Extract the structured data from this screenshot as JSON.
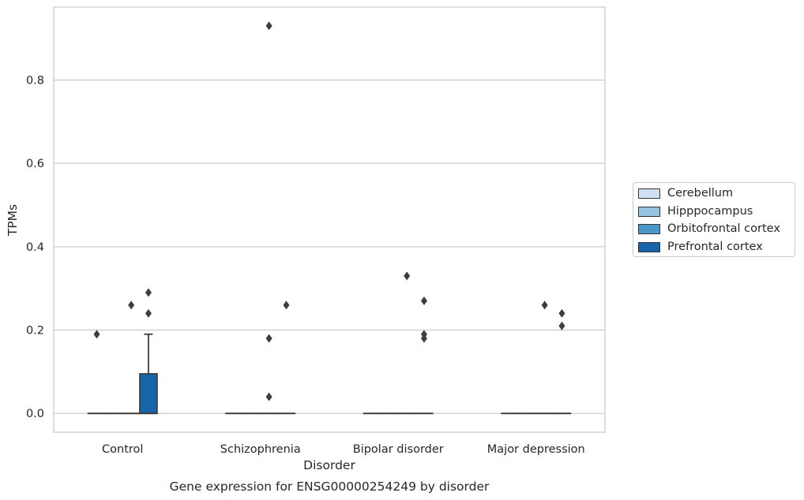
{
  "chart_data": {
    "type": "box",
    "title": "Gene expression for ENSG00000254249 by disorder",
    "xlabel": "Disorder",
    "ylabel": "TPMs",
    "ylim": [
      -0.045,
      0.975
    ],
    "yticks": [
      0.0,
      0.2,
      0.4,
      0.6,
      0.8
    ],
    "ytick_labels": [
      "0.0",
      "0.2",
      "0.4",
      "0.6",
      "0.8"
    ],
    "grid": "horizontal",
    "legend_position": "right",
    "categories": [
      "Control",
      "Schizophrenia",
      "Bipolar disorder",
      "Major depression"
    ],
    "series": [
      {
        "name": "Cerebellum",
        "color": "#d0e1f2",
        "boxes": [
          {
            "q1": 0,
            "median": 0,
            "q3": 0,
            "whisker_low": 0,
            "whisker_high": 0,
            "outliers": [
              0.19
            ]
          },
          {
            "q1": 0,
            "median": 0,
            "q3": 0,
            "whisker_low": 0,
            "whisker_high": 0,
            "outliers": []
          },
          {
            "q1": 0,
            "median": 0,
            "q3": 0,
            "whisker_low": 0,
            "whisker_high": 0,
            "outliers": []
          },
          {
            "q1": 0,
            "median": 0,
            "q3": 0,
            "whisker_low": 0,
            "whisker_high": 0,
            "outliers": []
          }
        ]
      },
      {
        "name": "Hipppocampus",
        "color": "#94c4df",
        "boxes": [
          {
            "q1": 0,
            "median": 0,
            "q3": 0,
            "whisker_low": 0,
            "whisker_high": 0,
            "outliers": []
          },
          {
            "q1": 0,
            "median": 0,
            "q3": 0,
            "whisker_low": 0,
            "whisker_high": 0,
            "outliers": []
          },
          {
            "q1": 0,
            "median": 0,
            "q3": 0,
            "whisker_low": 0,
            "whisker_high": 0,
            "outliers": []
          },
          {
            "q1": 0,
            "median": 0,
            "q3": 0,
            "whisker_low": 0,
            "whisker_high": 0,
            "outliers": []
          }
        ]
      },
      {
        "name": "Orbitofrontal cortex",
        "color": "#4a98c9",
        "boxes": [
          {
            "q1": 0,
            "median": 0,
            "q3": 0,
            "whisker_low": 0,
            "whisker_high": 0,
            "outliers": [
              0.26
            ]
          },
          {
            "q1": 0,
            "median": 0,
            "q3": 0,
            "whisker_low": 0,
            "whisker_high": 0,
            "outliers": [
              0.93,
              0.18,
              0.04
            ]
          },
          {
            "q1": 0,
            "median": 0,
            "q3": 0,
            "whisker_low": 0,
            "whisker_high": 0,
            "outliers": [
              0.33
            ]
          },
          {
            "q1": 0,
            "median": 0,
            "q3": 0,
            "whisker_low": 0,
            "whisker_high": 0,
            "outliers": [
              0.26
            ]
          }
        ]
      },
      {
        "name": "Prefrontal cortex",
        "color": "#1764ab",
        "boxes": [
          {
            "q1": 0,
            "median": 0,
            "q3": 0.095,
            "whisker_low": 0,
            "whisker_high": 0.19,
            "outliers": [
              0.29,
              0.24
            ]
          },
          {
            "q1": 0,
            "median": 0,
            "q3": 0,
            "whisker_low": 0,
            "whisker_high": 0,
            "outliers": [
              0.26
            ]
          },
          {
            "q1": 0,
            "median": 0,
            "q3": 0,
            "whisker_low": 0,
            "whisker_high": 0,
            "outliers": [
              0.27,
              0.19,
              0.18
            ]
          },
          {
            "q1": 0,
            "median": 0,
            "q3": 0,
            "whisker_low": 0,
            "whisker_high": 0,
            "outliers": [
              0.24,
              0.21
            ]
          }
        ]
      }
    ]
  }
}
